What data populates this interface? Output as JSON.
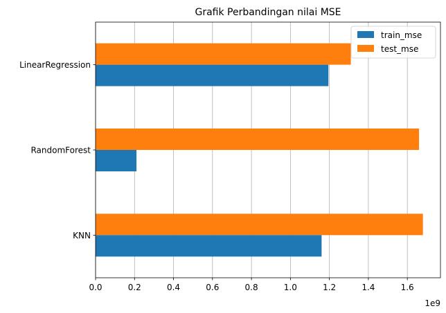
{
  "chart_data": {
    "type": "bar",
    "orientation": "horizontal",
    "title": "Grafik Perbandingan nilai MSE",
    "categories": [
      "KNN",
      "RandomForest",
      "LinearRegression"
    ],
    "series": [
      {
        "name": "train_mse",
        "color": "#1f77b4",
        "values": [
          1.16,
          0.21,
          1.195
        ]
      },
      {
        "name": "test_mse",
        "color": "#ff7f0e",
        "values": [
          1.68,
          1.66,
          1.31
        ]
      }
    ],
    "xlim": [
      0,
      1.77
    ],
    "xticks": [
      0.0,
      0.2,
      0.4,
      0.6,
      0.8,
      1.0,
      1.2,
      1.4,
      1.6
    ],
    "xtick_labels": [
      "0.0",
      "0.2",
      "0.4",
      "0.6",
      "0.8",
      "1.0",
      "1.2",
      "1.4",
      "1.6"
    ],
    "x_offset_text": "1e9",
    "xlabel": "",
    "ylabel": "",
    "grid": "x",
    "legend_position": "upper right"
  }
}
